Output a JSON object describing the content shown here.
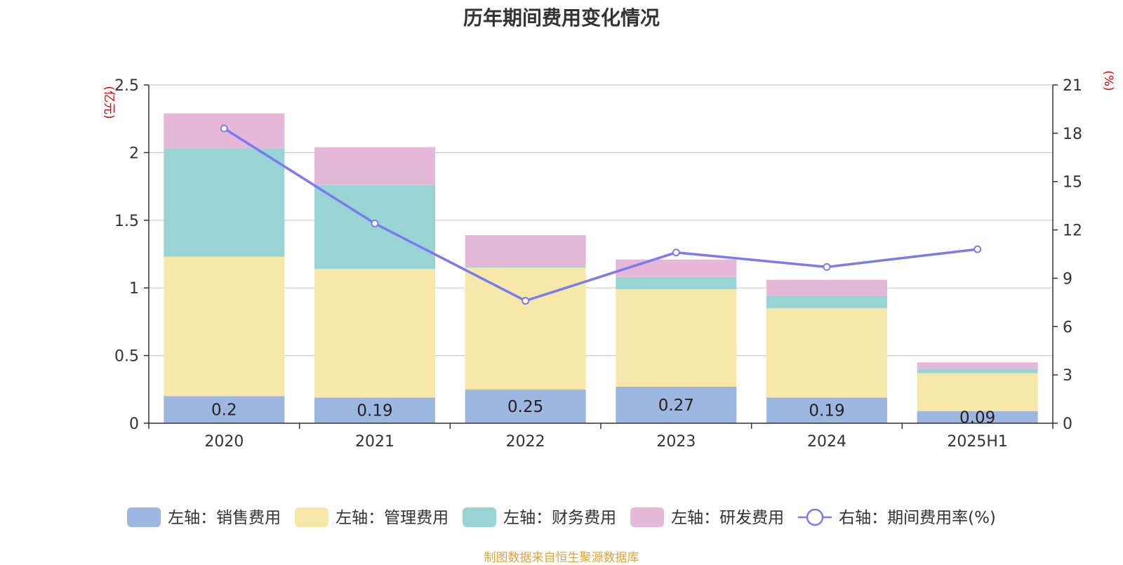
{
  "chart_data": {
    "type": "bar",
    "title": "历年期间费用变化情况",
    "categories": [
      "2020",
      "2021",
      "2022",
      "2023",
      "2024",
      "2025H1"
    ],
    "left_axis": {
      "unit": "(亿元)",
      "ylim": [
        0,
        2.5
      ],
      "ticks": [
        "0",
        "0.5",
        "1",
        "1.5",
        "2",
        "2.5"
      ]
    },
    "right_axis": {
      "unit": "(%)",
      "ylim": [
        0,
        21
      ],
      "ticks": [
        "0",
        "3",
        "6",
        "9",
        "12",
        "15",
        "18",
        "21"
      ]
    },
    "series": [
      {
        "name": "左轴：销售费用",
        "type": "bar",
        "axis": "left",
        "color": "#9db7e0",
        "values": [
          0.2,
          0.19,
          0.25,
          0.27,
          0.19,
          0.09
        ],
        "labels": [
          "0.2",
          "0.19",
          "0.25",
          "0.27",
          "0.19",
          "0.09"
        ]
      },
      {
        "name": "左轴：管理费用",
        "type": "bar",
        "axis": "left",
        "color": "#f7e7a8",
        "values": [
          1.03,
          0.95,
          0.9,
          0.72,
          0.66,
          0.28
        ]
      },
      {
        "name": "左轴：财务费用",
        "type": "bar",
        "axis": "left",
        "color": "#98d4d4",
        "values": [
          0.8,
          0.62,
          0.01,
          0.09,
          0.09,
          0.03
        ]
      },
      {
        "name": "左轴：研发费用",
        "type": "bar",
        "axis": "left",
        "color": "#e6b8d8",
        "values": [
          0.26,
          0.28,
          0.23,
          0.13,
          0.12,
          0.05
        ]
      },
      {
        "name": "右轴：期间费用率(%)",
        "type": "line",
        "axis": "right",
        "color": "#7b7bf0",
        "values": [
          18.3,
          12.4,
          7.6,
          10.6,
          9.7,
          10.8
        ]
      }
    ],
    "grid": true,
    "legend_position": "bottom"
  },
  "source_note": "制图数据来自恒生聚源数据库"
}
